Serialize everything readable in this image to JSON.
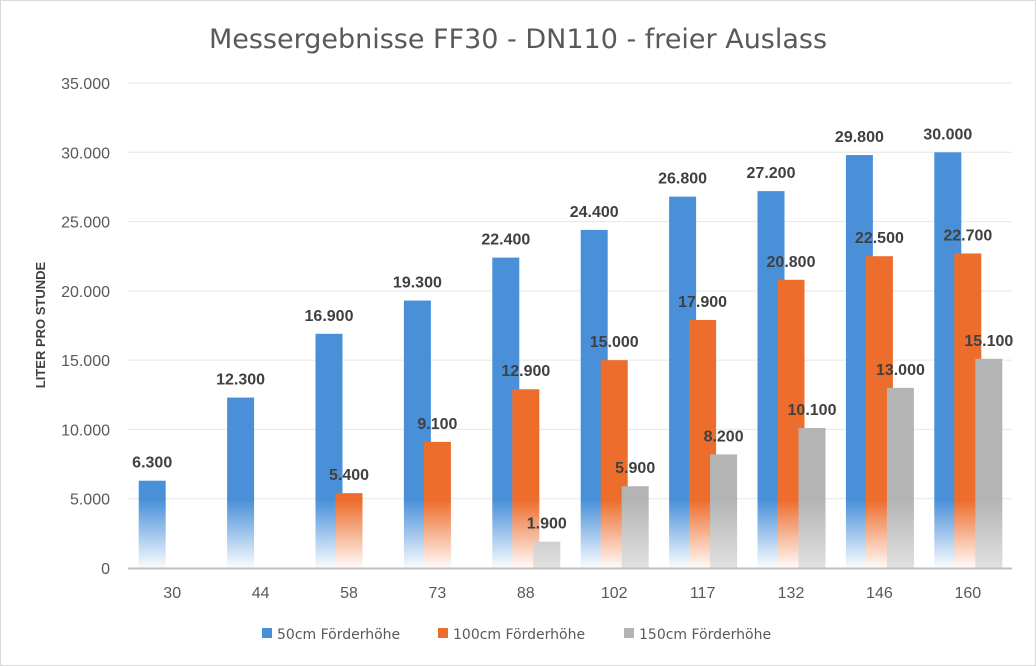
{
  "chart_data": {
    "type": "bar",
    "title": "Messergebnisse FF30 - DN110 - freier Auslass",
    "xlabel": "",
    "ylabel": "LITER PRO STUNDE",
    "categories": [
      "30",
      "44",
      "58",
      "73",
      "88",
      "102",
      "117",
      "132",
      "146",
      "160"
    ],
    "ylim": [
      0,
      35000
    ],
    "yticks": [
      "0",
      "5.000",
      "10.000",
      "15.000",
      "20.000",
      "25.000",
      "30.000",
      "35.000"
    ],
    "grid": true,
    "legend_position": "bottom",
    "series": [
      {
        "name": "50cm Förderhöhe",
        "color": "#4a90d9",
        "values": [
          6300,
          12300,
          16900,
          19300,
          22400,
          24400,
          26800,
          27200,
          29800,
          30000
        ],
        "labels": [
          "6.300",
          "12.300",
          "16.900",
          "19.300",
          "22.400",
          "24.400",
          "26.800",
          "27.200",
          "29.800",
          "30.000"
        ]
      },
      {
        "name": "100cm Förderhöhe",
        "color": "#ed6d2d",
        "values": [
          null,
          null,
          5400,
          9100,
          12900,
          15000,
          17900,
          20800,
          22500,
          22700
        ],
        "labels": [
          "",
          "",
          "5.400",
          "9.100",
          "12.900",
          "15.000",
          "17.900",
          "20.800",
          "22.500",
          "22.700"
        ]
      },
      {
        "name": "150cm Förderhöhe",
        "color": "#b4b4b4",
        "values": [
          null,
          null,
          null,
          null,
          1900,
          5900,
          8200,
          10100,
          13000,
          15100
        ],
        "labels": [
          "",
          "",
          "",
          "",
          "1.900",
          "5.900",
          "8.200",
          "10.100",
          "13.000",
          "15.100"
        ]
      }
    ]
  }
}
